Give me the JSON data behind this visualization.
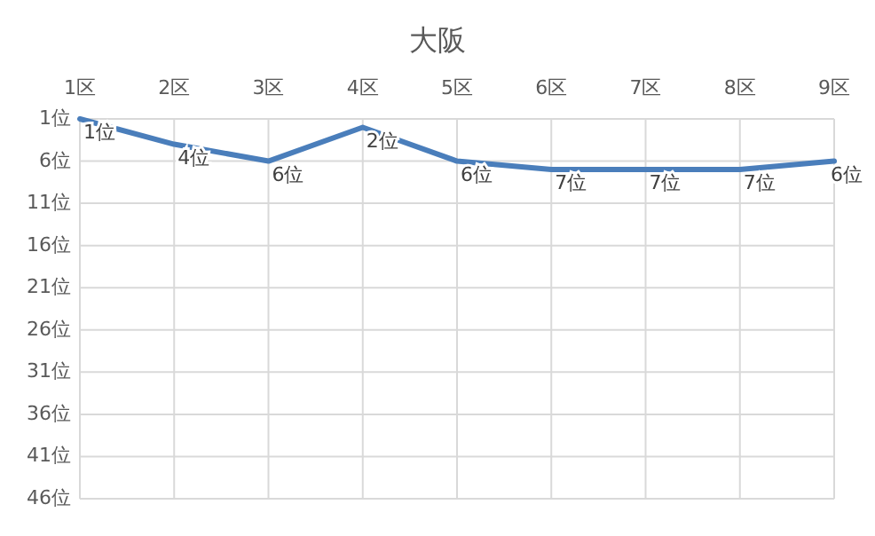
{
  "chart_data": {
    "type": "line",
    "title": "大阪",
    "categories": [
      "1区",
      "2区",
      "3区",
      "4区",
      "5区",
      "6区",
      "7区",
      "8区",
      "9区"
    ],
    "series": [
      {
        "color": "#4a7ebb",
        "values": [
          1,
          4,
          6,
          2,
          6,
          7,
          7,
          7,
          6
        ],
        "value_labels": [
          "1位",
          "4位",
          "6位",
          "2位",
          "6位",
          "7位",
          "7位",
          "7位",
          "6位"
        ]
      }
    ],
    "ylim": [
      46,
      1
    ],
    "yticks": [
      {
        "value": 1,
        "label": "1位"
      },
      {
        "value": 6,
        "label": "6位"
      },
      {
        "value": 11,
        "label": "11位"
      },
      {
        "value": 16,
        "label": "16位"
      },
      {
        "value": 21,
        "label": "21位"
      },
      {
        "value": 26,
        "label": "26位"
      },
      {
        "value": 31,
        "label": "31位"
      },
      {
        "value": 36,
        "label": "36位"
      },
      {
        "value": 41,
        "label": "41位"
      },
      {
        "value": 46,
        "label": "46位"
      }
    ],
    "grid": true,
    "marker": "none",
    "line_style": "solid"
  }
}
